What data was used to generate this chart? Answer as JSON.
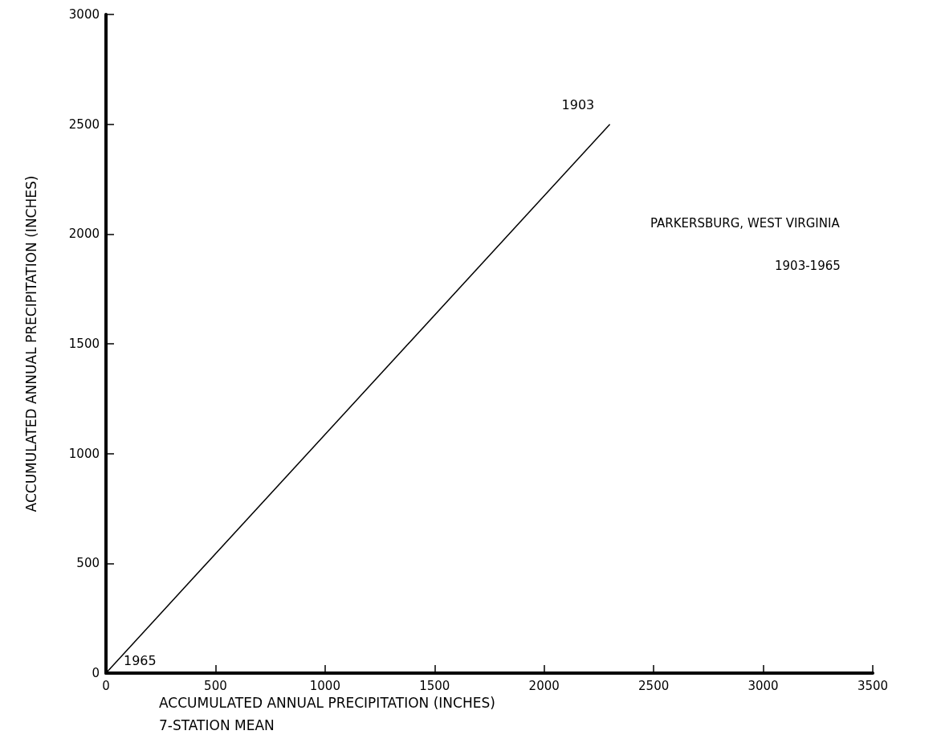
{
  "chart_data": {
    "type": "line",
    "title": "PARKERSBURG, WEST VIRGINIA",
    "subtitle": "1903-1965",
    "xlabel": "ACCUMULATED ANNUAL PRECIPITATION (INCHES)\n7-STATION MEAN",
    "ylabel": "ACCUMULATED ANNUAL PRECIPITATION (INCHES)",
    "x": [
      0,
      2300
    ],
    "series": [
      {
        "color": "#000000",
        "values": [
          0,
          2500
        ]
      }
    ],
    "xlim": [
      0,
      3500
    ],
    "xticks": [
      0,
      500,
      1000,
      1500,
      2000,
      2500,
      3000,
      3500
    ],
    "ylim": [
      0,
      3000
    ],
    "yticks": [
      0,
      500,
      1000,
      1500,
      2000,
      2500,
      3000
    ],
    "annotations": [
      {
        "text": "1903",
        "x": 2300,
        "y": 2500
      },
      {
        "text": "1965",
        "x": 0,
        "y": 0
      }
    ],
    "grid": false,
    "marker": "none",
    "line_style": "solid"
  }
}
